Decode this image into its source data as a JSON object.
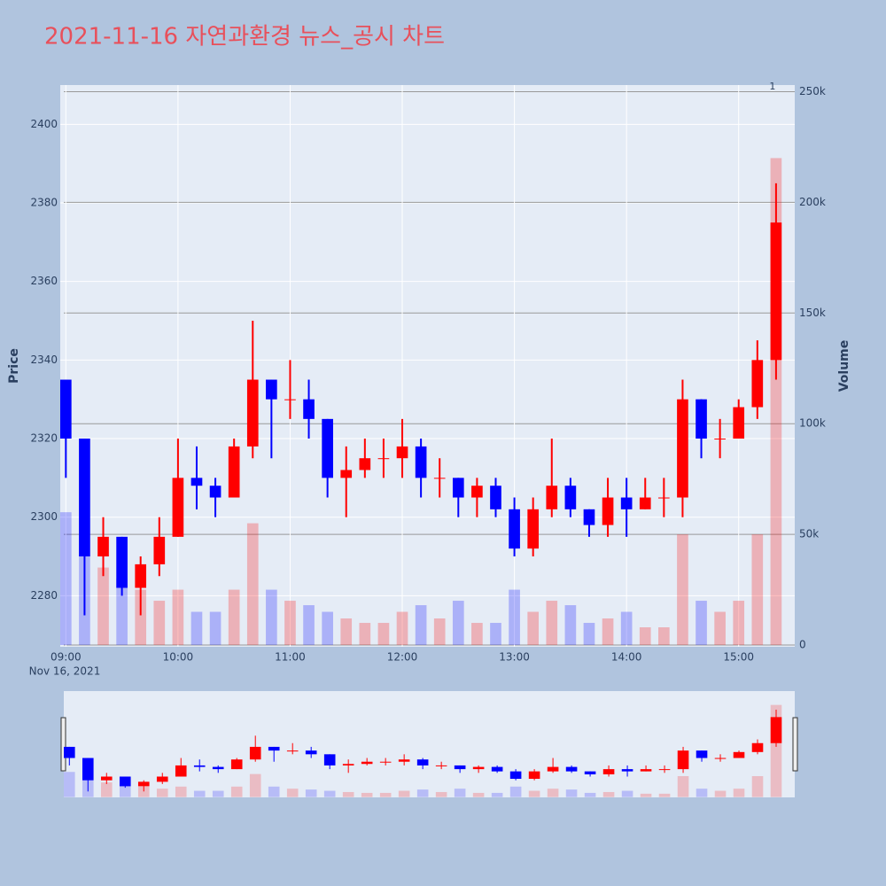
{
  "chart_data": {
    "type": "candlestick",
    "title": "2021-11-16 자연과환경 뉴스_공시 차트",
    "ylabel": "Price",
    "y2label": "Volume",
    "date_label": "Nov 16, 2021",
    "annotation": "1",
    "increasing_color": "#ff0000",
    "decreasing_color": "#0000ff",
    "title_color": "#e8505b",
    "x": [
      "09:00",
      "09:10",
      "09:20",
      "09:30",
      "09:40",
      "09:50",
      "10:00",
      "10:10",
      "10:20",
      "10:30",
      "10:40",
      "10:50",
      "11:00",
      "11:10",
      "11:20",
      "11:30",
      "11:40",
      "11:50",
      "12:00",
      "12:10",
      "12:20",
      "12:30",
      "12:40",
      "12:50",
      "13:00",
      "13:10",
      "13:20",
      "13:30",
      "13:40",
      "13:50",
      "14:00",
      "14:10",
      "14:20",
      "14:30",
      "14:40",
      "14:50",
      "15:00",
      "15:10",
      "15:20"
    ],
    "open": [
      2335,
      2320,
      2290,
      2295,
      2282,
      2288,
      2295,
      2310,
      2308,
      2305,
      2318,
      2335,
      2330,
      2330,
      2325,
      2310,
      2312,
      2315,
      2315,
      2318,
      2310,
      2310,
      2305,
      2308,
      2302,
      2292,
      2302,
      2308,
      2302,
      2298,
      2305,
      2302,
      2305,
      2305,
      2330,
      2320,
      2320,
      2328,
      2340
    ],
    "high": [
      2335,
      2320,
      2300,
      2295,
      2290,
      2300,
      2320,
      2318,
      2310,
      2320,
      2350,
      2335,
      2340,
      2335,
      2325,
      2318,
      2320,
      2320,
      2325,
      2320,
      2315,
      2310,
      2310,
      2310,
      2305,
      2305,
      2320,
      2310,
      2302,
      2310,
      2310,
      2310,
      2310,
      2335,
      2330,
      2325,
      2330,
      2345,
      2385
    ],
    "low": [
      2310,
      2275,
      2285,
      2280,
      2275,
      2285,
      2295,
      2302,
      2300,
      2305,
      2315,
      2315,
      2325,
      2320,
      2305,
      2300,
      2310,
      2310,
      2310,
      2305,
      2305,
      2300,
      2300,
      2300,
      2290,
      2290,
      2300,
      2300,
      2295,
      2295,
      2295,
      2302,
      2300,
      2300,
      2315,
      2315,
      2320,
      2325,
      2335
    ],
    "close": [
      2320,
      2290,
      2295,
      2282,
      2288,
      2295,
      2310,
      2308,
      2305,
      2318,
      2335,
      2330,
      2330,
      2325,
      2310,
      2312,
      2315,
      2315,
      2318,
      2310,
      2310,
      2305,
      2308,
      2302,
      2292,
      2302,
      2308,
      2302,
      2298,
      2305,
      2302,
      2305,
      2305,
      2330,
      2320,
      2320,
      2328,
      2340,
      2375
    ],
    "volume": [
      60000,
      40000,
      35000,
      30000,
      25000,
      20000,
      25000,
      15000,
      15000,
      25000,
      55000,
      25000,
      20000,
      18000,
      15000,
      12000,
      10000,
      10000,
      15000,
      18000,
      12000,
      20000,
      10000,
      10000,
      25000,
      15000,
      20000,
      18000,
      10000,
      12000,
      15000,
      8000,
      8000,
      50000,
      20000,
      15000,
      20000,
      50000,
      220000
    ],
    "xlim": [
      "08:57",
      "15:30"
    ],
    "xticks": [
      "09:00",
      "10:00",
      "11:00",
      "12:00",
      "13:00",
      "14:00",
      "15:00"
    ],
    "ylim": [
      2267,
      2410
    ],
    "yticks": [
      2280,
      2300,
      2320,
      2340,
      2360,
      2380,
      2400
    ],
    "y2lim": [
      -800,
      253000
    ],
    "y2ticks": [
      0,
      {
        "value": 50000,
        "label": "50k"
      },
      {
        "value": 100000,
        "label": "100k"
      },
      {
        "value": 150000,
        "label": "150k"
      },
      {
        "value": 200000,
        "label": "200k"
      },
      {
        "value": 250000,
        "label": "250k"
      }
    ]
  }
}
